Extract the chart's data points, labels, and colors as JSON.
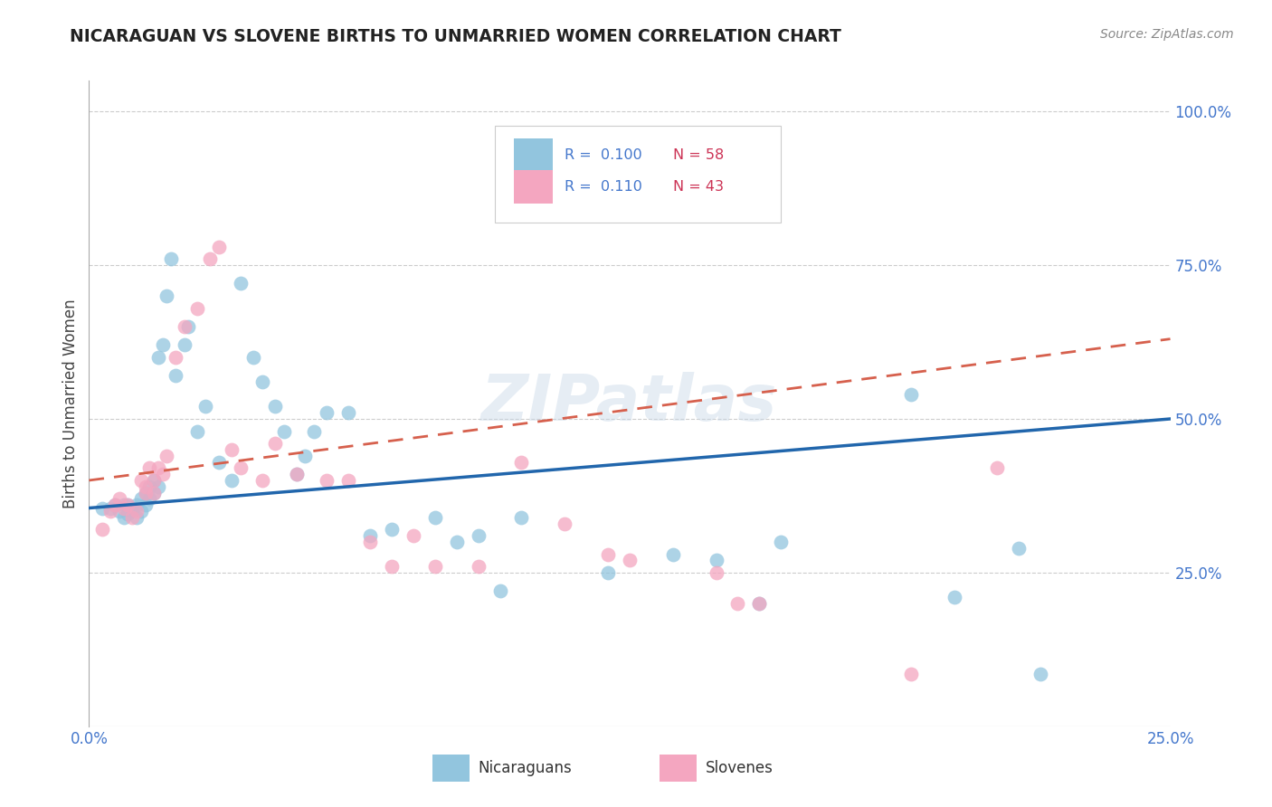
{
  "title": "NICARAGUAN VS SLOVENE BIRTHS TO UNMARRIED WOMEN CORRELATION CHART",
  "source": "Source: ZipAtlas.com",
  "ylabel": "Births to Unmarried Women",
  "xlabel_nicaraguans": "Nicaraguans",
  "xlabel_slovenes": "Slovenes",
  "xmin": 0.0,
  "xmax": 0.25,
  "ymin": 0.0,
  "ymax": 1.05,
  "color_blue": "#92c5de",
  "color_pink": "#f4a6c0",
  "line_blue": "#2166ac",
  "line_pink": "#d6604d",
  "watermark": "ZIPatlas",
  "blue_trend_x": [
    0.0,
    0.25
  ],
  "blue_trend_y": [
    0.355,
    0.5
  ],
  "pink_trend_x": [
    0.0,
    0.25
  ],
  "pink_trend_y": [
    0.4,
    0.63
  ],
  "blue_x": [
    0.003,
    0.005,
    0.006,
    0.007,
    0.008,
    0.008,
    0.009,
    0.009,
    0.01,
    0.01,
    0.011,
    0.011,
    0.012,
    0.012,
    0.013,
    0.013,
    0.014,
    0.014,
    0.015,
    0.015,
    0.016,
    0.016,
    0.017,
    0.018,
    0.019,
    0.02,
    0.022,
    0.023,
    0.025,
    0.027,
    0.03,
    0.033,
    0.035,
    0.038,
    0.04,
    0.043,
    0.045,
    0.048,
    0.05,
    0.052,
    0.055,
    0.06,
    0.065,
    0.07,
    0.08,
    0.085,
    0.09,
    0.095,
    0.1,
    0.12,
    0.135,
    0.145,
    0.155,
    0.16,
    0.19,
    0.2,
    0.215,
    0.22
  ],
  "blue_y": [
    0.355,
    0.355,
    0.36,
    0.35,
    0.36,
    0.34,
    0.345,
    0.36,
    0.35,
    0.355,
    0.34,
    0.36,
    0.35,
    0.37,
    0.36,
    0.38,
    0.37,
    0.39,
    0.38,
    0.4,
    0.39,
    0.6,
    0.62,
    0.7,
    0.76,
    0.57,
    0.62,
    0.65,
    0.48,
    0.52,
    0.43,
    0.4,
    0.72,
    0.6,
    0.56,
    0.52,
    0.48,
    0.41,
    0.44,
    0.48,
    0.51,
    0.51,
    0.31,
    0.32,
    0.34,
    0.3,
    0.31,
    0.22,
    0.34,
    0.25,
    0.28,
    0.27,
    0.2,
    0.3,
    0.54,
    0.21,
    0.29,
    0.085
  ],
  "pink_x": [
    0.003,
    0.005,
    0.006,
    0.007,
    0.008,
    0.009,
    0.01,
    0.011,
    0.012,
    0.013,
    0.013,
    0.014,
    0.015,
    0.015,
    0.016,
    0.017,
    0.018,
    0.02,
    0.022,
    0.025,
    0.028,
    0.03,
    0.033,
    0.035,
    0.04,
    0.043,
    0.048,
    0.055,
    0.06,
    0.065,
    0.07,
    0.075,
    0.08,
    0.09,
    0.1,
    0.11,
    0.12,
    0.125,
    0.145,
    0.15,
    0.155,
    0.19,
    0.21
  ],
  "pink_y": [
    0.32,
    0.35,
    0.36,
    0.37,
    0.355,
    0.36,
    0.34,
    0.35,
    0.4,
    0.39,
    0.38,
    0.42,
    0.4,
    0.38,
    0.42,
    0.41,
    0.44,
    0.6,
    0.65,
    0.68,
    0.76,
    0.78,
    0.45,
    0.42,
    0.4,
    0.46,
    0.41,
    0.4,
    0.4,
    0.3,
    0.26,
    0.31,
    0.26,
    0.26,
    0.43,
    0.33,
    0.28,
    0.27,
    0.25,
    0.2,
    0.2,
    0.085,
    0.42
  ]
}
